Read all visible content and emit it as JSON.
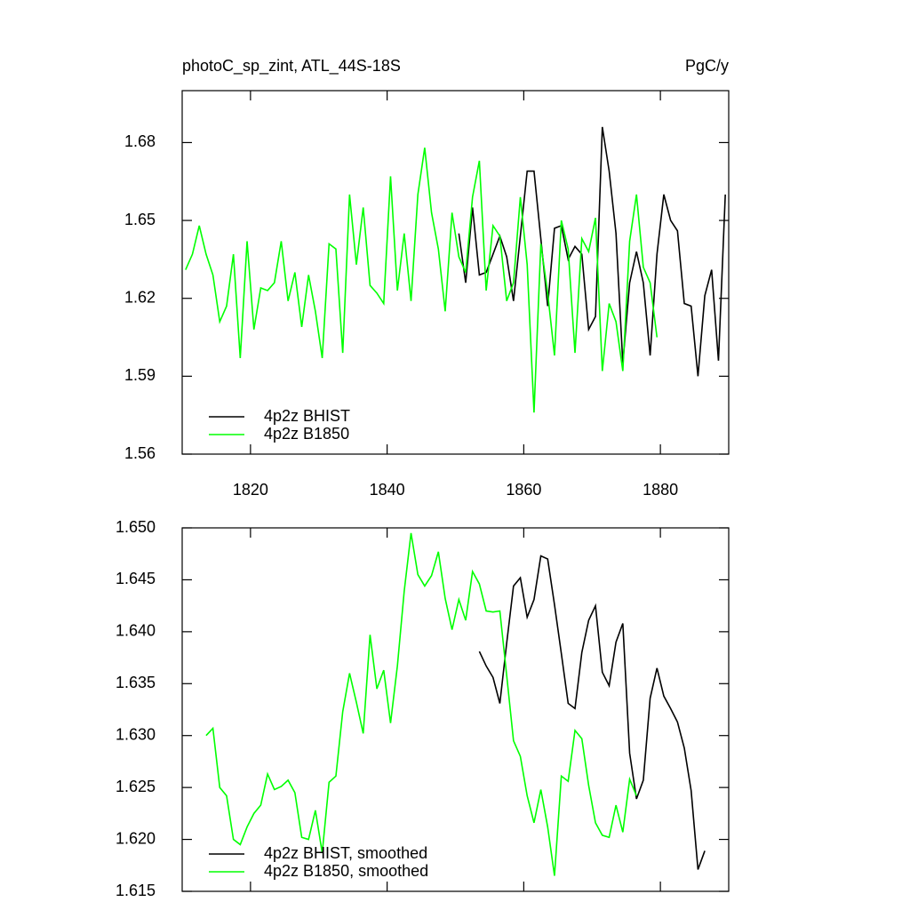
{
  "chart_data": [
    {
      "type": "line",
      "title": "photoC_sp_zint, ATL_44S-18S",
      "unit_label": "PgC/y",
      "xlim": [
        1810,
        1890
      ],
      "xticks": [
        1820,
        1840,
        1860,
        1880
      ],
      "ylim": [
        1.56,
        1.7
      ],
      "yticks": [
        1.56,
        1.59,
        1.62,
        1.65,
        1.68
      ],
      "legend": "lower left",
      "series": [
        {
          "name": "4p2z BHIST",
          "color": "#000000",
          "x": [
            1850.5,
            1851.5,
            1852.5,
            1853.5,
            1854.5,
            1855.5,
            1856.5,
            1857.5,
            1858.5,
            1859.5,
            1860.5,
            1861.5,
            1862.5,
            1863.5,
            1864.5,
            1865.5,
            1866.5,
            1867.5,
            1868.5,
            1869.5,
            1870.5,
            1871.5,
            1872.5,
            1873.5,
            1874.5,
            1875.5,
            1876.5,
            1877.5,
            1878.5,
            1879.5,
            1880.5,
            1881.5,
            1882.5,
            1883.5,
            1884.5,
            1885.5,
            1886.5,
            1887.5,
            1888.5,
            1889.5
          ],
          "values": [
            1.645,
            1.626,
            1.655,
            1.629,
            1.63,
            1.637,
            1.644,
            1.636,
            1.619,
            1.644,
            1.669,
            1.669,
            1.643,
            1.617,
            1.647,
            1.648,
            1.635,
            1.64,
            1.637,
            1.608,
            1.613,
            1.686,
            1.669,
            1.645,
            1.595,
            1.626,
            1.638,
            1.626,
            1.598,
            1.637,
            1.66,
            1.65,
            1.646,
            1.618,
            1.617,
            1.59,
            1.621,
            1.631,
            1.596,
            1.66
          ]
        },
        {
          "name": "4p2z B1850",
          "color": "#00ff00",
          "x": [
            1810.5,
            1811.5,
            1812.5,
            1813.5,
            1814.5,
            1815.5,
            1816.5,
            1817.5,
            1818.5,
            1819.5,
            1820.5,
            1821.5,
            1822.5,
            1823.5,
            1824.5,
            1825.5,
            1826.5,
            1827.5,
            1828.5,
            1829.5,
            1830.5,
            1831.5,
            1832.5,
            1833.5,
            1834.5,
            1835.5,
            1836.5,
            1837.5,
            1838.5,
            1839.5,
            1840.5,
            1841.5,
            1842.5,
            1843.5,
            1844.5,
            1845.5,
            1846.5,
            1847.5,
            1848.5,
            1849.5,
            1850.5,
            1851.5,
            1852.5,
            1853.5,
            1854.5,
            1855.5,
            1856.5,
            1857.5,
            1858.5,
            1859.5,
            1860.5,
            1861.5,
            1862.5,
            1863.5,
            1864.5,
            1865.5,
            1866.5,
            1867.5,
            1868.5,
            1869.5,
            1870.5,
            1871.5,
            1872.5,
            1873.5,
            1874.5,
            1875.5,
            1876.5,
            1877.5,
            1878.5,
            1879.5
          ],
          "values": [
            1.631,
            1.637,
            1.648,
            1.637,
            1.629,
            1.611,
            1.617,
            1.637,
            1.597,
            1.642,
            1.608,
            1.624,
            1.623,
            1.626,
            1.642,
            1.619,
            1.63,
            1.609,
            1.629,
            1.615,
            1.597,
            1.641,
            1.639,
            1.599,
            1.66,
            1.633,
            1.655,
            1.625,
            1.622,
            1.618,
            1.667,
            1.623,
            1.645,
            1.619,
            1.66,
            1.678,
            1.653,
            1.639,
            1.615,
            1.653,
            1.636,
            1.63,
            1.659,
            1.673,
            1.623,
            1.648,
            1.644,
            1.619,
            1.626,
            1.659,
            1.633,
            1.576,
            1.641,
            1.622,
            1.598,
            1.65,
            1.639,
            1.599,
            1.643,
            1.638,
            1.651,
            1.592,
            1.618,
            1.611,
            1.592,
            1.642,
            1.66,
            1.632,
            1.626,
            1.605
          ]
        }
      ]
    },
    {
      "type": "line",
      "xlim": [
        1810,
        1890
      ],
      "xticks": [
        1820,
        1840,
        1860,
        1880
      ],
      "xtick_labels": false,
      "ylim": [
        1.615,
        1.65
      ],
      "yticks": [
        {
          "value": 1.615,
          "label": "1.615"
        },
        {
          "value": 1.62,
          "label": "1.620"
        },
        {
          "value": 1.625,
          "label": "1.625"
        },
        {
          "value": 1.63,
          "label": "1.630"
        },
        {
          "value": 1.635,
          "label": "1.635"
        },
        {
          "value": 1.64,
          "label": "1.640"
        },
        {
          "value": 1.645,
          "label": "1.645"
        },
        {
          "value": 1.65,
          "label": "1.650"
        }
      ],
      "legend": "lower left",
      "series": [
        {
          "name": "4p2z BHIST, smoothed",
          "color": "#000000",
          "x": [
            1853.5,
            1854.5,
            1855.5,
            1856.5,
            1857.5,
            1858.5,
            1859.5,
            1860.5,
            1861.5,
            1862.5,
            1863.5,
            1864.5,
            1865.5,
            1866.5,
            1867.5,
            1868.5,
            1869.5,
            1870.5,
            1871.5,
            1872.5,
            1873.5,
            1874.5,
            1875.5,
            1876.5,
            1877.5,
            1878.5,
            1879.5,
            1880.5,
            1881.5,
            1882.5,
            1883.5,
            1884.5,
            1885.5,
            1886.5
          ],
          "values": [
            1.6381,
            1.6367,
            1.6356,
            1.6331,
            1.6389,
            1.6444,
            1.6452,
            1.6414,
            1.6431,
            1.6473,
            1.647,
            1.6426,
            1.6379,
            1.6331,
            1.6326,
            1.638,
            1.6411,
            1.6425,
            1.6361,
            1.6348,
            1.639,
            1.6408,
            1.6283,
            1.6239,
            1.6257,
            1.6336,
            1.6365,
            1.6338,
            1.6326,
            1.6313,
            1.6288,
            1.6247,
            1.6171,
            1.6189
          ]
        },
        {
          "name": "4p2z B1850, smoothed",
          "color": "#00ff00",
          "x": [
            1813.5,
            1814.5,
            1815.5,
            1816.5,
            1817.5,
            1818.5,
            1819.5,
            1820.5,
            1821.5,
            1822.5,
            1823.5,
            1824.5,
            1825.5,
            1826.5,
            1827.5,
            1828.5,
            1829.5,
            1830.5,
            1831.5,
            1832.5,
            1833.5,
            1834.5,
            1835.5,
            1836.5,
            1837.5,
            1838.5,
            1839.5,
            1840.5,
            1841.5,
            1842.5,
            1843.5,
            1844.5,
            1845.5,
            1846.5,
            1847.5,
            1848.5,
            1849.5,
            1850.5,
            1851.5,
            1852.5,
            1853.5,
            1854.5,
            1855.5,
            1856.5,
            1857.5,
            1858.5,
            1859.5,
            1860.5,
            1861.5,
            1862.5,
            1863.5,
            1864.5,
            1865.5,
            1866.5,
            1867.5,
            1868.5,
            1869.5,
            1870.5,
            1871.5,
            1872.5,
            1873.5,
            1874.5,
            1875.5,
            1876.5
          ],
          "values": [
            1.63,
            1.6307,
            1.625,
            1.6242,
            1.62,
            1.6195,
            1.6212,
            1.6225,
            1.6233,
            1.6263,
            1.6248,
            1.6251,
            1.6257,
            1.6245,
            1.6202,
            1.62,
            1.6228,
            1.6187,
            1.6255,
            1.6261,
            1.6323,
            1.636,
            1.6332,
            1.6302,
            1.6397,
            1.6345,
            1.6363,
            1.6312,
            1.6367,
            1.6439,
            1.6495,
            1.6455,
            1.6444,
            1.6454,
            1.6477,
            1.6432,
            1.6402,
            1.6431,
            1.6411,
            1.6458,
            1.6446,
            1.642,
            1.6419,
            1.642,
            1.6358,
            1.6295,
            1.628,
            1.6242,
            1.6216,
            1.6248,
            1.6212,
            1.6165,
            1.6261,
            1.6256,
            1.6305,
            1.6297,
            1.6252,
            1.6216,
            1.6204,
            1.6202,
            1.6233,
            1.6207,
            1.6258,
            1.6242
          ]
        }
      ]
    }
  ]
}
